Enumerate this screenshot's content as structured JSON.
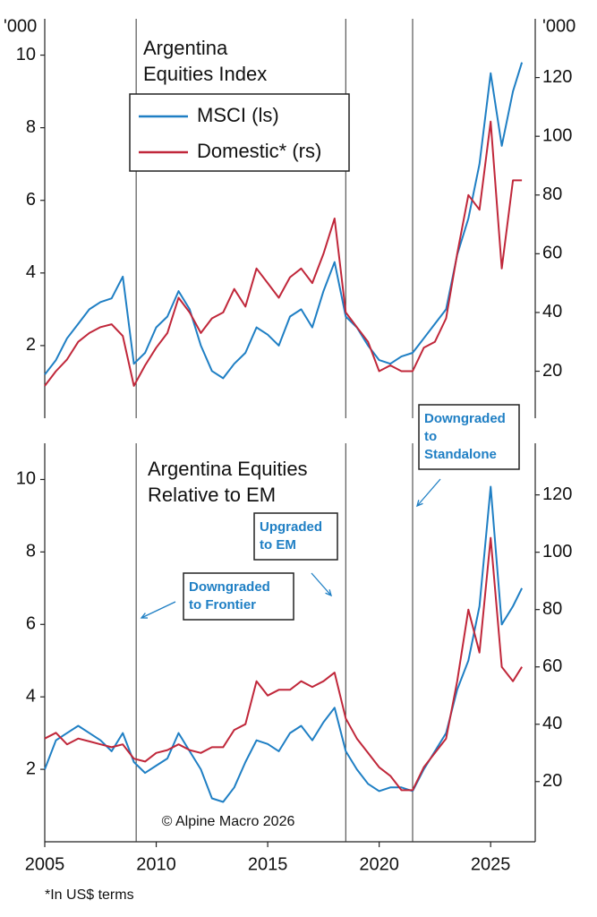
{
  "chart_data": [
    {
      "type": "line",
      "title_lines": [
        "Argentina",
        "Equities Index"
      ],
      "y_label": "'000",
      "y2_label": "'000",
      "xlim": [
        2005,
        2027
      ],
      "ylim": [
        0,
        11
      ],
      "yticks": [
        2,
        4,
        6,
        8,
        10
      ],
      "y2lim": [
        4,
        140
      ],
      "y2ticks": [
        20,
        40,
        60,
        80,
        100,
        120
      ],
      "event_lines": [
        2009.1,
        2018.5,
        2021.5
      ],
      "x": [
        2005,
        2005.5,
        2006,
        2006.5,
        2007,
        2007.5,
        2008,
        2008.5,
        2009,
        2009.5,
        2010,
        2010.5,
        2011,
        2011.5,
        2012,
        2012.5,
        2013,
        2013.5,
        2014,
        2014.5,
        2015,
        2015.5,
        2016,
        2016.5,
        2017,
        2017.5,
        2018,
        2018.5,
        2019,
        2019.5,
        2020,
        2020.5,
        2021,
        2021.5,
        2022,
        2022.5,
        2023,
        2023.5,
        2024,
        2024.5,
        2025,
        2025.5,
        2026,
        2026.4
      ],
      "series": [
        {
          "name": "MSCI (ls)",
          "color": "#1f7fc4",
          "values": [
            1.2,
            1.6,
            2.2,
            2.6,
            3.0,
            3.2,
            3.3,
            3.9,
            1.5,
            1.8,
            2.5,
            2.8,
            3.5,
            3.0,
            2.0,
            1.3,
            1.1,
            1.5,
            1.8,
            2.5,
            2.3,
            2.0,
            2.8,
            3.0,
            2.5,
            3.5,
            4.3,
            2.8,
            2.5,
            2.0,
            1.6,
            1.5,
            1.7,
            1.8,
            2.2,
            2.6,
            3.0,
            4.5,
            5.5,
            7.0,
            9.5,
            7.5,
            9.0,
            9.8
          ]
        },
        {
          "name": "Domestic* (rs)",
          "color": "#c0273a",
          "axis": "y2",
          "values": [
            15,
            20,
            24,
            30,
            33,
            35,
            36,
            32,
            15,
            22,
            28,
            33,
            45,
            40,
            33,
            38,
            40,
            48,
            42,
            55,
            50,
            45,
            52,
            55,
            50,
            60,
            72,
            40,
            35,
            30,
            20,
            22,
            20,
            20,
            28,
            30,
            38,
            60,
            80,
            75,
            105,
            55,
            85,
            85
          ]
        }
      ]
    },
    {
      "type": "line",
      "title_lines": [
        "Argentina Equities",
        "Relative to EM"
      ],
      "credit": "© Alpine Macro 2026",
      "xlim": [
        2005,
        2027
      ],
      "xticks": [
        2005,
        2010,
        2015,
        2020,
        2025
      ],
      "ylim": [
        0,
        11
      ],
      "yticks": [
        2,
        4,
        6,
        8,
        10
      ],
      "y2lim": [
        -1,
        138
      ],
      "y2ticks": [
        20,
        40,
        60,
        80,
        100,
        120
      ],
      "event_lines": [
        2009.1,
        2018.5,
        2021.5
      ],
      "annotations": [
        {
          "lines": [
            "Downgraded",
            "to Frontier"
          ]
        },
        {
          "lines": [
            "Upgraded",
            "to EM"
          ]
        },
        {
          "lines": [
            "Downgraded",
            "to",
            "Standalone"
          ]
        }
      ],
      "x": [
        2005,
        2005.5,
        2006,
        2006.5,
        2007,
        2007.5,
        2008,
        2008.5,
        2009,
        2009.5,
        2010,
        2010.5,
        2011,
        2011.5,
        2012,
        2012.5,
        2013,
        2013.5,
        2014,
        2014.5,
        2015,
        2015.5,
        2016,
        2016.5,
        2017,
        2017.5,
        2018,
        2018.5,
        2019,
        2019.5,
        2020,
        2020.5,
        2021,
        2021.5,
        2022,
        2022.5,
        2023,
        2023.5,
        2024,
        2024.5,
        2025,
        2025.5,
        2026,
        2026.4
      ],
      "series": [
        {
          "color": "#1f7fc4",
          "values": [
            2.0,
            2.8,
            3.0,
            3.2,
            3.0,
            2.8,
            2.5,
            3.0,
            2.2,
            1.9,
            2.1,
            2.3,
            3.0,
            2.5,
            2.0,
            1.2,
            1.1,
            1.5,
            2.2,
            2.8,
            2.7,
            2.5,
            3.0,
            3.2,
            2.8,
            3.3,
            3.7,
            2.5,
            2.0,
            1.6,
            1.4,
            1.5,
            1.5,
            1.4,
            2.0,
            2.5,
            3.0,
            4.2,
            5.0,
            6.5,
            9.8,
            6.0,
            6.5,
            7.0
          ]
        },
        {
          "color": "#c0273a",
          "axis": "y2",
          "values": [
            35,
            37,
            33,
            35,
            34,
            33,
            32,
            33,
            28,
            27,
            30,
            31,
            33,
            31,
            30,
            32,
            32,
            38,
            40,
            55,
            50,
            52,
            52,
            55,
            53,
            55,
            58,
            42,
            35,
            30,
            25,
            22,
            17,
            17,
            25,
            30,
            35,
            55,
            80,
            65,
            105,
            60,
            55,
            60
          ]
        }
      ]
    }
  ],
  "footnote": "*In US$ terms"
}
